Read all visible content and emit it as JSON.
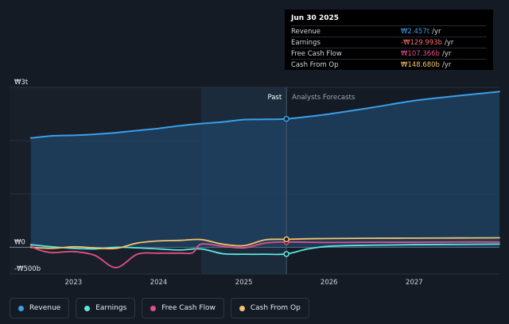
{
  "tooltip": {
    "date": "Jun 30 2025",
    "rows": [
      {
        "label": "Revenue",
        "value": "₩2.457t",
        "unit": "/yr",
        "color": "#3a9fe8"
      },
      {
        "label": "Earnings",
        "value": "-₩129.993b",
        "unit": "/yr",
        "color": "#ff6b6b"
      },
      {
        "label": "Free Cash Flow",
        "value": "₩107.366b",
        "unit": "/yr",
        "color": "#e44f86"
      },
      {
        "label": "Cash From Op",
        "value": "₩148.680b",
        "unit": "/yr",
        "color": "#f5c26b"
      }
    ]
  },
  "legend": [
    {
      "label": "Revenue",
      "color": "#3a9fe8"
    },
    {
      "label": "Earnings",
      "color": "#5ce6e0"
    },
    {
      "label": "Free Cash Flow",
      "color": "#e44f86"
    },
    {
      "label": "Cash From Op",
      "color": "#f5c26b"
    }
  ],
  "chart_data": {
    "type": "line",
    "y_tick_labels": [
      "₩3t",
      "₩0",
      "-₩500b"
    ],
    "y_ticks": [
      3000,
      0,
      -500
    ],
    "ylim": [
      -500,
      3000
    ],
    "x_tick_labels": [
      "2023",
      "2024",
      "2025",
      "2026",
      "2027"
    ],
    "x_ticks": [
      2023,
      2024,
      2025,
      2026,
      2027
    ],
    "xlim": [
      2022.25,
      2028.0
    ],
    "past_label": "Past",
    "forecast_label": "Analysts Forecasts",
    "split_x": 2025.5,
    "highlight_range": [
      2024.5,
      2025.5
    ],
    "grid": true,
    "legend_position": "bottom-left",
    "series": [
      {
        "name": "Revenue",
        "color": "#3a9fe8",
        "x": [
          2022.5,
          2022.75,
          2023.0,
          2023.25,
          2023.5,
          2023.75,
          2024.0,
          2024.25,
          2024.5,
          2024.75,
          2025.0,
          2025.25,
          2025.5,
          2026.0,
          2026.5,
          2027.0,
          2027.5,
          2028.0
        ],
        "y": [
          2050,
          2090,
          2100,
          2120,
          2150,
          2190,
          2230,
          2280,
          2320,
          2350,
          2395,
          2400,
          2410,
          2500,
          2620,
          2750,
          2840,
          2920
        ]
      },
      {
        "name": "Earnings",
        "color": "#5ce6e0",
        "x": [
          2022.5,
          2022.75,
          2023.0,
          2023.25,
          2023.5,
          2023.75,
          2024.0,
          2024.25,
          2024.5,
          2024.75,
          2025.0,
          2025.25,
          2025.5,
          2025.75,
          2026.0,
          2026.5,
          2027.0,
          2027.5,
          2028.0
        ],
        "y": [
          50,
          10,
          -20,
          -30,
          0,
          -10,
          -30,
          -50,
          -30,
          -120,
          -130,
          -130,
          -125,
          -30,
          20,
          40,
          50,
          55,
          60
        ]
      },
      {
        "name": "Free Cash Flow",
        "color": "#e44f86",
        "x": [
          2022.5,
          2022.6,
          2022.75,
          2023.0,
          2023.25,
          2023.5,
          2023.75,
          2024.0,
          2024.25,
          2024.4,
          2024.5,
          2024.75,
          2025.0,
          2025.25,
          2025.5,
          2026.0,
          2026.5,
          2027.0,
          2027.5,
          2028.0
        ],
        "y": [
          20,
          -50,
          -100,
          -80,
          -150,
          -380,
          -130,
          -110,
          -110,
          -100,
          60,
          20,
          -10,
          80,
          100,
          90,
          95,
          95,
          100,
          100
        ]
      },
      {
        "name": "Cash From Op",
        "color": "#f5c26b",
        "x": [
          2022.5,
          2022.75,
          2023.0,
          2023.25,
          2023.5,
          2023.75,
          2024.0,
          2024.25,
          2024.5,
          2024.75,
          2025.0,
          2025.25,
          2025.5,
          2025.75,
          2026.0,
          2026.5,
          2027.0,
          2027.5,
          2028.0
        ],
        "y": [
          0,
          -20,
          10,
          -10,
          -20,
          80,
          120,
          130,
          145,
          60,
          30,
          140,
          150,
          160,
          165,
          170,
          172,
          175,
          178
        ]
      }
    ]
  }
}
